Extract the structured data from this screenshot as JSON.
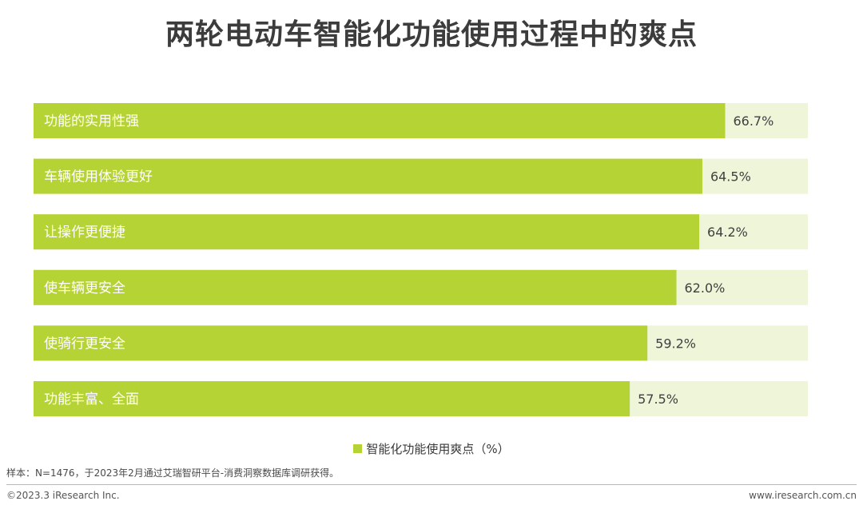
{
  "title": "两轮电动车智能化功能使用过程中的爽点",
  "colors": {
    "bar": "#b5d334",
    "track": "#eff5d9"
  },
  "legend": {
    "label": "智能化功能使用爽点（%）"
  },
  "footer": {
    "source_note": "样本：N=1476，于2023年2月通过艾瑞智研平台-消费洞察数据库调研获得。",
    "copyright": "©2023.3 iResearch Inc.",
    "website": "www.iresearch.com.cn"
  },
  "chart_data": {
    "type": "bar",
    "orientation": "horizontal",
    "title": "两轮电动车智能化功能使用过程中的爽点",
    "categories": [
      "功能的实用性强",
      "车辆使用体验更好",
      "让操作更便捷",
      "使车辆更安全",
      "使骑行更安全",
      "功能丰富、全面"
    ],
    "series": [
      {
        "name": "智能化功能使用爽点（%）",
        "values": [
          66.7,
          64.5,
          64.2,
          62.0,
          59.2,
          57.5
        ]
      }
    ],
    "value_labels": [
      "66.7%",
      "64.5%",
      "64.2%",
      "62.0%",
      "59.2%",
      "57.5%"
    ],
    "grid": false,
    "legend_position": "bottom"
  }
}
